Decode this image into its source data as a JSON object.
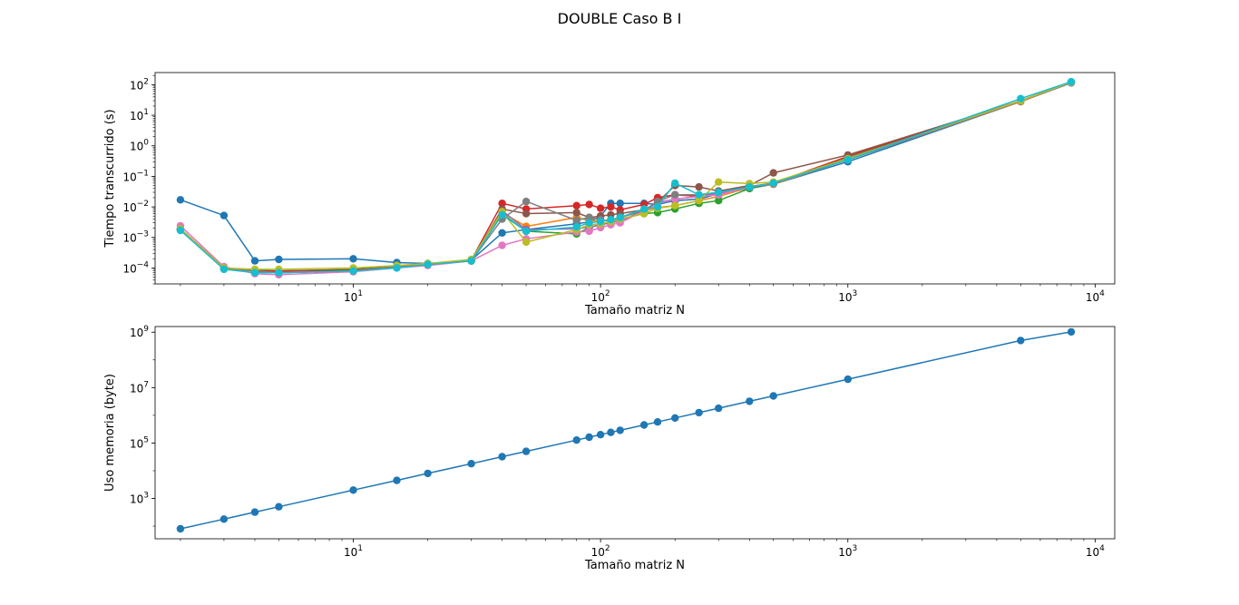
{
  "figure": {
    "title": "DOUBLE Caso B I"
  },
  "chart_data": [
    {
      "type": "line",
      "xscale": "log",
      "yscale": "log",
      "xlabel": "Tamaño matriz N",
      "ylabel": "Tiempo transcurrido (s)",
      "xlim": [
        1.58,
        12000
      ],
      "ylim": [
        3e-05,
        250
      ],
      "xticks": [
        {
          "base": "10",
          "exp": "1",
          "value": 10
        },
        {
          "base": "10",
          "exp": "2",
          "value": 100
        },
        {
          "base": "10",
          "exp": "3",
          "value": 1000
        },
        {
          "base": "10",
          "exp": "4",
          "value": 10000
        }
      ],
      "yticks": [
        {
          "base": "10",
          "exp": "−4",
          "value": 0.0001
        },
        {
          "base": "10",
          "exp": "−3",
          "value": 0.001
        },
        {
          "base": "10",
          "exp": "−2",
          "value": 0.01
        },
        {
          "base": "10",
          "exp": "−1",
          "value": 0.1
        },
        {
          "base": "10",
          "exp": "0",
          "value": 1
        },
        {
          "base": "10",
          "exp": "1",
          "value": 10
        },
        {
          "base": "10",
          "exp": "2",
          "value": 100
        }
      ],
      "x": [
        2,
        3,
        4,
        5,
        10,
        15,
        20,
        30,
        40,
        50,
        80,
        90,
        100,
        110,
        120,
        150,
        170,
        200,
        250,
        300,
        400,
        500,
        1000,
        5000,
        8000
      ],
      "series": [
        {
          "color": "#1f77b4",
          "values": [
            0.017,
            0.0052,
            0.00017,
            0.00019,
            0.0002,
            0.00015,
            0.00014,
            0.00018,
            0.0014,
            0.0018,
            0.0028,
            0.0032,
            0.005,
            0.013,
            0.013,
            0.013,
            0.012,
            0.016,
            0.018,
            0.027,
            0.04,
            0.055,
            0.3,
            28,
            115
          ]
        },
        {
          "color": "#ff7f0e",
          "values": [
            0.0019,
            0.0001,
            8e-05,
            8e-05,
            8.5e-05,
            0.00011,
            0.00013,
            0.00018,
            0.0065,
            0.0023,
            0.0045,
            0.0035,
            0.0035,
            0.0038,
            0.0045,
            0.0075,
            0.0095,
            0.011,
            0.016,
            0.022,
            0.043,
            0.055,
            0.35,
            28,
            118
          ]
        },
        {
          "color": "#2ca02c",
          "values": [
            0.0018,
            9.5e-05,
            8.5e-05,
            8e-05,
            9e-05,
            0.00011,
            0.00013,
            0.00017,
            0.006,
            0.0016,
            0.0013,
            0.0021,
            0.0026,
            0.0032,
            0.004,
            0.006,
            0.0065,
            0.0085,
            0.013,
            0.016,
            0.04,
            0.06,
            0.4,
            29,
            120
          ]
        },
        {
          "color": "#d62728",
          "values": [
            0.0019,
            0.0001,
            8e-05,
            8e-05,
            8.5e-05,
            0.00011,
            0.00013,
            0.00018,
            0.013,
            0.0085,
            0.011,
            0.012,
            0.009,
            0.01,
            0.008,
            0.012,
            0.02,
            0.025,
            0.022,
            0.03,
            0.046,
            0.06,
            0.45,
            30,
            122
          ]
        },
        {
          "color": "#9467bd",
          "values": [
            0.0019,
            0.0001,
            8e-05,
            7e-05,
            8e-05,
            0.00011,
            0.00013,
            0.00017,
            0.0075,
            0.0018,
            0.0019,
            0.0022,
            0.0026,
            0.003,
            0.0035,
            0.0075,
            0.014,
            0.018,
            0.022,
            0.027,
            0.045,
            0.058,
            0.35,
            29,
            118
          ]
        },
        {
          "color": "#8c564b",
          "values": [
            0.0019,
            0.0001,
            8e-05,
            7e-05,
            8e-05,
            0.00011,
            0.00013,
            0.00017,
            0.0085,
            0.006,
            0.0065,
            0.0045,
            0.005,
            0.0055,
            0.006,
            0.008,
            0.014,
            0.05,
            0.045,
            0.033,
            0.05,
            0.13,
            0.5,
            29,
            118
          ]
        },
        {
          "color": "#e377c2",
          "values": [
            0.0024,
            0.00011,
            6.5e-05,
            6e-05,
            7.5e-05,
            0.0001,
            0.00012,
            0.00017,
            0.00055,
            0.0009,
            0.0015,
            0.0016,
            0.0021,
            0.0026,
            0.003,
            0.0075,
            0.013,
            0.018,
            0.022,
            0.025,
            0.045,
            0.058,
            0.35,
            29,
            118
          ]
        },
        {
          "color": "#7f7f7f",
          "values": [
            0.0019,
            0.0001,
            8e-05,
            7e-05,
            8e-05,
            0.00011,
            0.00013,
            0.00017,
            0.004,
            0.015,
            0.0036,
            0.0045,
            0.0038,
            0.0033,
            0.0045,
            0.0075,
            0.015,
            0.025,
            0.025,
            0.03,
            0.045,
            0.058,
            0.35,
            29,
            118
          ]
        },
        {
          "color": "#bcbd22",
          "values": [
            0.0019,
            0.0001,
            9e-05,
            9e-05,
            0.0001,
            0.00012,
            0.00014,
            0.00019,
            0.007,
            0.0007,
            0.0018,
            0.0026,
            0.0028,
            0.0033,
            0.004,
            0.006,
            0.009,
            0.011,
            0.016,
            0.065,
            0.058,
            0.065,
            0.38,
            30,
            120
          ]
        },
        {
          "color": "#17becf",
          "values": [
            0.0017,
            9e-05,
            7e-05,
            7e-05,
            8e-05,
            0.0001,
            0.00013,
            0.00017,
            0.0055,
            0.0016,
            0.0022,
            0.003,
            0.0033,
            0.0038,
            0.0045,
            0.0085,
            0.01,
            0.06,
            0.025,
            0.03,
            0.045,
            0.06,
            0.35,
            35,
            125
          ]
        }
      ]
    },
    {
      "type": "line",
      "xscale": "log",
      "yscale": "log",
      "xlabel": "Tamaño matriz N",
      "ylabel": "Uso memoria (byte)",
      "xlim": [
        1.58,
        12000
      ],
      "ylim": [
        35,
        1600000000
      ],
      "xticks": [
        {
          "base": "10",
          "exp": "1",
          "value": 10
        },
        {
          "base": "10",
          "exp": "2",
          "value": 100
        },
        {
          "base": "10",
          "exp": "3",
          "value": 1000
        },
        {
          "base": "10",
          "exp": "4",
          "value": 10000
        }
      ],
      "yticks": [
        {
          "base": "10",
          "exp": "3",
          "value": 1000
        },
        {
          "base": "10",
          "exp": "5",
          "value": 100000
        },
        {
          "base": "10",
          "exp": "7",
          "value": 10000000
        },
        {
          "base": "10",
          "exp": "9",
          "value": 1000000000
        }
      ],
      "x": [
        2,
        3,
        4,
        5,
        10,
        15,
        20,
        30,
        40,
        50,
        80,
        90,
        100,
        110,
        120,
        150,
        170,
        200,
        250,
        300,
        400,
        500,
        1000,
        5000,
        8000
      ],
      "series": [
        {
          "color": "#1f77b4",
          "values": [
            80,
            180,
            320,
            500,
            2000,
            4500,
            8000,
            18000,
            32000,
            50000,
            128000,
            162000,
            200000,
            242000,
            288000,
            450000,
            578000,
            800000,
            1250000,
            1800000,
            3200000,
            5000000,
            20000000,
            500000000,
            1024000000
          ]
        }
      ]
    }
  ]
}
